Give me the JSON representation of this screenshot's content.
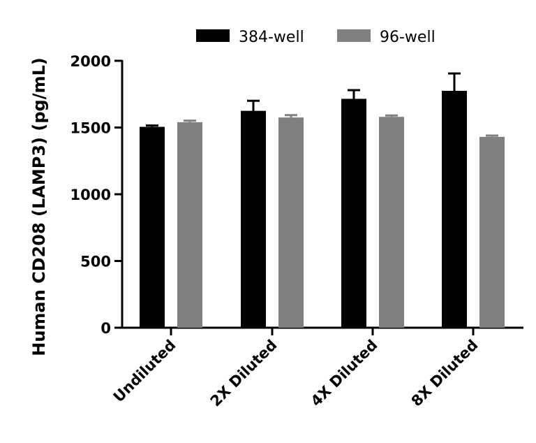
{
  "chart_data": {
    "type": "bar",
    "ylabel": "Human CD208 (LAMP3) (pg/mL)",
    "xlabel": "",
    "ylim": [
      0,
      2000
    ],
    "yticks": [
      0,
      500,
      1000,
      1500,
      2000
    ],
    "categories": [
      "Undiluted",
      "2X Diluted",
      "4X Diluted",
      "8X Diluted"
    ],
    "series": [
      {
        "name": "384-well",
        "color": "#000000",
        "values": [
          1505,
          1625,
          1715,
          1775
        ],
        "error": [
          10,
          75,
          65,
          130
        ]
      },
      {
        "name": "96-well",
        "color": "#808080",
        "values": [
          1540,
          1575,
          1580,
          1430
        ],
        "error": [
          12,
          18,
          10,
          10
        ]
      }
    ],
    "legend_position": "top"
  }
}
